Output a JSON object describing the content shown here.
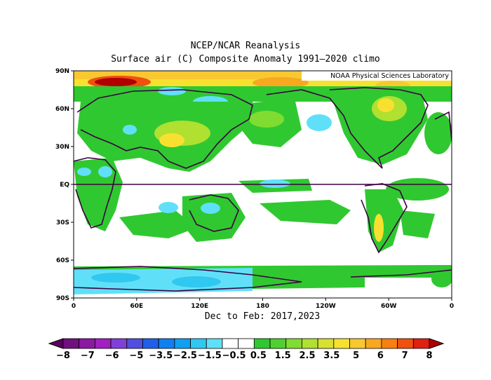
{
  "title_line1": "NCEP/NCAR Reanalysis",
  "title_line2": "Surface air (C) Composite Anomaly 1991–2020 climo",
  "credit": "NOAA Physical Sciences Laboratory",
  "footer": "Dec to Feb: 2017,2023",
  "map": {
    "lat_labels": [
      "90N",
      "60N",
      "30N",
      "EQ",
      "30S",
      "60S",
      "90S"
    ],
    "lon_labels": [
      "0",
      "60E",
      "120E",
      "180",
      "120W",
      "60W",
      "0"
    ]
  },
  "colorbar": {
    "labels": [
      "−8",
      "−7",
      "−6",
      "−5",
      "−3.5",
      "−2.5",
      "−1.5",
      "−0.5",
      "0.5",
      "1.5",
      "2.5",
      "3.5",
      "5",
      "6",
      "7",
      "8"
    ],
    "colors": [
      "#5a0060",
      "#70107e",
      "#8a1aa0",
      "#a020c0",
      "#8040d8",
      "#5050e0",
      "#2060e8",
      "#1080f0",
      "#10a0f0",
      "#30c8f0",
      "#60e0f8",
      "#ffffff",
      "#ffffff",
      "#30c830",
      "#50d030",
      "#80dc30",
      "#b0e030",
      "#d8e030",
      "#f8e030",
      "#f8c830",
      "#f8a820",
      "#f88010",
      "#f05010",
      "#e02010",
      "#b00000"
    ]
  }
}
